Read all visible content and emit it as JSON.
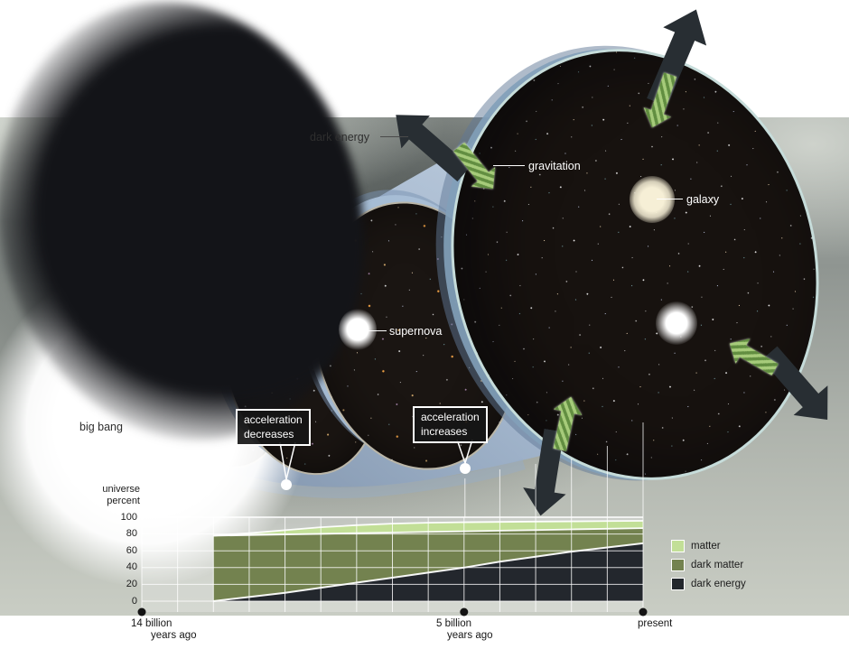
{
  "labels": {
    "dark_energy": "dark energy",
    "gravitation": "gravitation",
    "galaxy": "galaxy",
    "supernova": "supernova",
    "big_bang": "big bang"
  },
  "callouts": {
    "decel": {
      "line1": "acceleration",
      "line2": "decreases"
    },
    "accel": {
      "line1": "acceleration",
      "line2": "increases"
    }
  },
  "axis": {
    "y_title_line1": "universe",
    "y_title_line2": "percent",
    "y_ticks": [
      "100",
      "80",
      "60",
      "40",
      "20",
      "0"
    ],
    "x_labels": [
      {
        "line1": "14 billion",
        "line2": "years ago",
        "years_ago": 14
      },
      {
        "line1": "5 billion",
        "line2": "years ago",
        "years_ago": 5
      },
      {
        "line1": "present",
        "line2": "",
        "years_ago": 0
      }
    ]
  },
  "legend": {
    "items": [
      {
        "label": "matter",
        "color": "#c2df97"
      },
      {
        "label": "dark matter",
        "color": "#73824f"
      },
      {
        "label": "dark energy",
        "color": "#23272d"
      }
    ]
  },
  "chart_data": {
    "type": "area",
    "stacked": true,
    "ylabel": "universe percent",
    "ylim": [
      0,
      100
    ],
    "grid": true,
    "legend_position": "right",
    "x_axis_range_years_ago": [
      14,
      0
    ],
    "x_tick_labels": [
      "14 billion years ago",
      "5 billion years ago",
      "present"
    ],
    "x_years_ago": [
      12,
      11,
      10,
      9,
      8,
      7,
      6,
      5,
      4,
      3,
      2,
      1,
      0
    ],
    "series": [
      {
        "name": "dark energy",
        "color": "#23272d",
        "cumulative_top_pct": [
          0,
          5,
          10,
          16,
          22,
          28,
          34,
          40,
          47,
          53,
          59,
          64,
          69
        ]
      },
      {
        "name": "dark matter",
        "color": "#73824f",
        "cumulative_top_pct": [
          78,
          78.7,
          79.5,
          80.2,
          81,
          81.7,
          82.5,
          83.2,
          84,
          84.7,
          85.5,
          86.2,
          87
        ]
      },
      {
        "name": "matter",
        "color": "#c2df97",
        "cumulative_top_pct": [
          78,
          81,
          84.5,
          88,
          90.5,
          92.3,
          93.4,
          94,
          94.4,
          94.8,
          95.1,
          95.4,
          95.7
        ]
      }
    ]
  }
}
